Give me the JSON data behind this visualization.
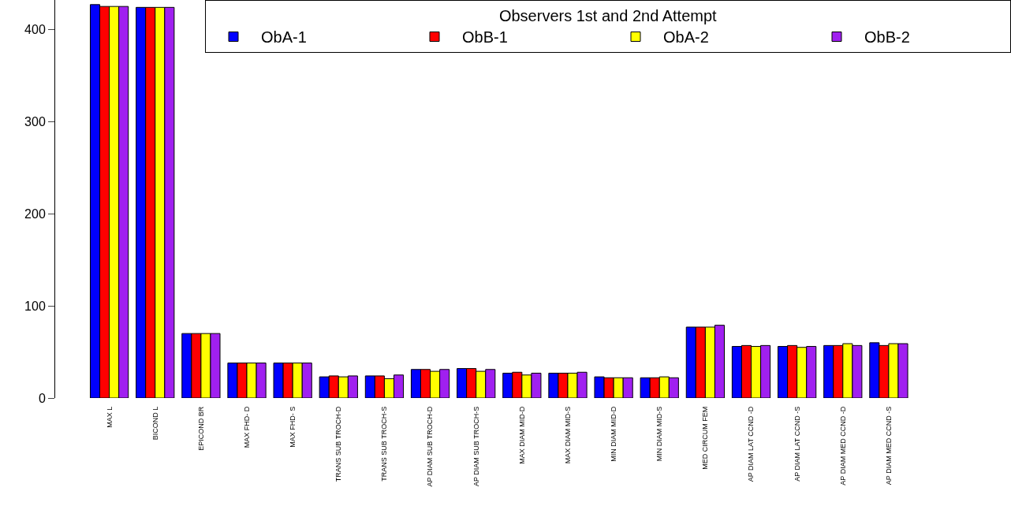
{
  "chart_data": {
    "type": "bar",
    "legend_title": "Observers 1st and 2nd Attempt",
    "categories": [
      "MAX L",
      "BICOND L",
      "EPICOND BR",
      "MAX FHD- D",
      "MAX FHD- S",
      "TRANS SUB TROCH-D",
      "TRANS SUB TROCH-S",
      "AP DIAM SUB TROCH-D",
      "AP DIAM SUB TROCH-S",
      "MAX DIAM MID-D",
      "MAX DIAM MID-S",
      "MIN DIAM MID-D",
      "MIN DIAM MID-S",
      "MED CIRCUM FEM",
      "AP DIAM LAT CCND -D",
      "AP DIAM LAT CCND -S",
      "AP DIAM MED CCND -D",
      "AP DIAM MED CCND -S"
    ],
    "series": [
      {
        "name": "ObA-1",
        "color": "#0000ff",
        "values": [
          427,
          424,
          70,
          38,
          38,
          23,
          24,
          31,
          32,
          27,
          27,
          23,
          22,
          77,
          56,
          56,
          57,
          60
        ]
      },
      {
        "name": "ObB-1",
        "color": "#ff0000",
        "values": [
          425,
          424,
          70,
          38,
          38,
          24,
          24,
          31,
          32,
          28,
          27,
          22,
          22,
          77,
          57,
          57,
          57,
          57
        ]
      },
      {
        "name": "ObA-2",
        "color": "#ffff00",
        "values": [
          425,
          424,
          70,
          38,
          38,
          23,
          21,
          29,
          29,
          25,
          27,
          22,
          23,
          77,
          56,
          55,
          59,
          59
        ]
      },
      {
        "name": "ObB-2",
        "color": "#a020f0",
        "values": [
          425,
          424,
          70,
          38,
          38,
          24,
          25,
          31,
          31,
          27,
          28,
          22,
          22,
          79,
          57,
          56,
          57,
          59
        ]
      }
    ],
    "ylim": [
      0,
      432
    ],
    "yticks": [
      0,
      100,
      200,
      300,
      400
    ],
    "grid": false,
    "legend": "top right"
  }
}
